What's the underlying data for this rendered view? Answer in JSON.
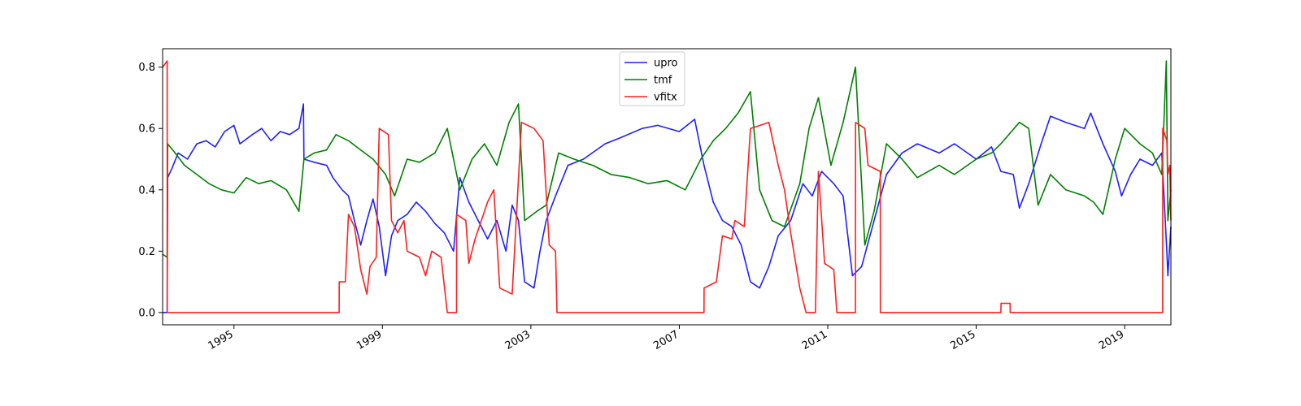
{
  "chart_data": {
    "type": "line",
    "title": "",
    "xlabel": "",
    "ylabel": "",
    "xlim": [
      "1993-01-29",
      "2020-03-31"
    ],
    "ylim": [
      -0.04,
      0.86
    ],
    "x_ticks": [
      "1995",
      "1999",
      "2003",
      "2007",
      "2011",
      "2015",
      "2019"
    ],
    "y_ticks": [
      "0.0",
      "0.2",
      "0.4",
      "0.6",
      "0.8"
    ],
    "grid": false,
    "legend_position": "top-center",
    "series": [
      {
        "name": "upro",
        "color": "#1f1fff",
        "points": [
          [
            "1993-01-29",
            0.0
          ],
          [
            "1993-03-15",
            0.0
          ],
          [
            "1993-03-20",
            0.44
          ],
          [
            "1993-05-01",
            0.47
          ],
          [
            "1993-07-01",
            0.52
          ],
          [
            "1993-10-01",
            0.5
          ],
          [
            "1994-01-01",
            0.55
          ],
          [
            "1994-04-01",
            0.56
          ],
          [
            "1994-07-01",
            0.54
          ],
          [
            "1994-10-01",
            0.59
          ],
          [
            "1995-01-01",
            0.61
          ],
          [
            "1995-03-01",
            0.55
          ],
          [
            "1995-07-01",
            0.58
          ],
          [
            "1995-10-01",
            0.6
          ],
          [
            "1996-01-01",
            0.56
          ],
          [
            "1996-04-01",
            0.59
          ],
          [
            "1996-07-01",
            0.58
          ],
          [
            "1996-10-01",
            0.6
          ],
          [
            "1996-11-15",
            0.68
          ],
          [
            "1996-11-20",
            0.5
          ],
          [
            "1997-03-01",
            0.49
          ],
          [
            "1997-07-01",
            0.48
          ],
          [
            "1997-09-01",
            0.44
          ],
          [
            "1997-12-01",
            0.4
          ],
          [
            "1998-02-01",
            0.38
          ],
          [
            "1998-04-01",
            0.3
          ],
          [
            "1998-06-01",
            0.22
          ],
          [
            "1998-08-01",
            0.3
          ],
          [
            "1998-10-01",
            0.37
          ],
          [
            "1998-12-01",
            0.28
          ],
          [
            "1999-02-01",
            0.12
          ],
          [
            "1999-04-01",
            0.25
          ],
          [
            "1999-06-01",
            0.3
          ],
          [
            "1999-09-01",
            0.32
          ],
          [
            "1999-12-01",
            0.36
          ],
          [
            "2000-03-01",
            0.33
          ],
          [
            "2000-06-01",
            0.29
          ],
          [
            "2000-09-01",
            0.26
          ],
          [
            "2000-12-01",
            0.2
          ],
          [
            "2001-02-01",
            0.44
          ],
          [
            "2001-05-01",
            0.36
          ],
          [
            "2001-08-01",
            0.3
          ],
          [
            "2001-11-01",
            0.24
          ],
          [
            "2002-02-01",
            0.3
          ],
          [
            "2002-05-01",
            0.2
          ],
          [
            "2002-07-01",
            0.35
          ],
          [
            "2002-09-01",
            0.3
          ],
          [
            "2002-11-01",
            0.1
          ],
          [
            "2003-02-01",
            0.08
          ],
          [
            "2003-04-01",
            0.2
          ],
          [
            "2003-06-01",
            0.3
          ],
          [
            "2003-09-01",
            0.38
          ],
          [
            "2004-01-01",
            0.48
          ],
          [
            "2004-06-01",
            0.5
          ],
          [
            "2005-01-01",
            0.55
          ],
          [
            "2005-06-01",
            0.57
          ],
          [
            "2006-01-01",
            0.6
          ],
          [
            "2006-06-01",
            0.61
          ],
          [
            "2007-01-01",
            0.59
          ],
          [
            "2007-06-01",
            0.63
          ],
          [
            "2007-09-01",
            0.48
          ],
          [
            "2007-12-01",
            0.36
          ],
          [
            "2008-03-01",
            0.3
          ],
          [
            "2008-06-01",
            0.28
          ],
          [
            "2008-09-01",
            0.22
          ],
          [
            "2008-12-01",
            0.1
          ],
          [
            "2009-03-01",
            0.08
          ],
          [
            "2009-06-01",
            0.15
          ],
          [
            "2009-09-01",
            0.25
          ],
          [
            "2010-01-01",
            0.3
          ],
          [
            "2010-05-01",
            0.42
          ],
          [
            "2010-08-01",
            0.38
          ],
          [
            "2010-11-01",
            0.46
          ],
          [
            "2011-03-01",
            0.42
          ],
          [
            "2011-06-01",
            0.38
          ],
          [
            "2011-09-01",
            0.12
          ],
          [
            "2011-12-01",
            0.15
          ],
          [
            "2012-04-01",
            0.3
          ],
          [
            "2012-08-01",
            0.45
          ],
          [
            "2013-01-01",
            0.52
          ],
          [
            "2013-06-01",
            0.55
          ],
          [
            "2014-01-01",
            0.52
          ],
          [
            "2014-06-01",
            0.55
          ],
          [
            "2015-01-01",
            0.5
          ],
          [
            "2015-06-01",
            0.54
          ],
          [
            "2015-09-01",
            0.46
          ],
          [
            "2016-01-01",
            0.45
          ],
          [
            "2016-03-01",
            0.34
          ],
          [
            "2016-06-01",
            0.42
          ],
          [
            "2016-10-01",
            0.55
          ],
          [
            "2017-01-01",
            0.64
          ],
          [
            "2017-06-01",
            0.62
          ],
          [
            "2017-12-01",
            0.6
          ],
          [
            "2018-02-01",
            0.65
          ],
          [
            "2018-06-01",
            0.55
          ],
          [
            "2018-10-01",
            0.46
          ],
          [
            "2018-12-01",
            0.38
          ],
          [
            "2019-03-01",
            0.45
          ],
          [
            "2019-06-01",
            0.5
          ],
          [
            "2019-10-01",
            0.48
          ],
          [
            "2020-01-01",
            0.52
          ],
          [
            "2020-02-20",
            0.2
          ],
          [
            "2020-03-01",
            0.12
          ],
          [
            "2020-03-31",
            0.28
          ]
        ]
      },
      {
        "name": "tmf",
        "color": "#008000",
        "points": [
          [
            "1993-01-29",
            0.19
          ],
          [
            "1993-03-15",
            0.18
          ],
          [
            "1993-03-20",
            0.55
          ],
          [
            "1993-06-01",
            0.52
          ],
          [
            "1993-09-01",
            0.48
          ],
          [
            "1994-01-01",
            0.45
          ],
          [
            "1994-05-01",
            0.42
          ],
          [
            "1994-09-01",
            0.4
          ],
          [
            "1995-01-01",
            0.39
          ],
          [
            "1995-05-01",
            0.44
          ],
          [
            "1995-09-01",
            0.42
          ],
          [
            "1996-01-01",
            0.43
          ],
          [
            "1996-06-01",
            0.4
          ],
          [
            "1996-10-01",
            0.33
          ],
          [
            "1996-11-20",
            0.5
          ],
          [
            "1997-03-01",
            0.52
          ],
          [
            "1997-07-01",
            0.53
          ],
          [
            "1997-10-01",
            0.58
          ],
          [
            "1998-02-01",
            0.56
          ],
          [
            "1998-06-01",
            0.53
          ],
          [
            "1998-10-01",
            0.5
          ],
          [
            "1999-02-01",
            0.45
          ],
          [
            "1999-05-01",
            0.38
          ],
          [
            "1999-09-01",
            0.5
          ],
          [
            "2000-01-01",
            0.49
          ],
          [
            "2000-06-01",
            0.52
          ],
          [
            "2000-10-01",
            0.6
          ],
          [
            "2001-02-01",
            0.4
          ],
          [
            "2001-06-01",
            0.5
          ],
          [
            "2001-10-01",
            0.55
          ],
          [
            "2002-02-01",
            0.48
          ],
          [
            "2002-06-01",
            0.62
          ],
          [
            "2002-09-01",
            0.68
          ],
          [
            "2002-11-01",
            0.3
          ],
          [
            "2003-03-01",
            0.33
          ],
          [
            "2003-06-01",
            0.35
          ],
          [
            "2003-10-01",
            0.52
          ],
          [
            "2004-03-01",
            0.5
          ],
          [
            "2004-09-01",
            0.48
          ],
          [
            "2005-03-01",
            0.45
          ],
          [
            "2005-09-01",
            0.44
          ],
          [
            "2006-03-01",
            0.42
          ],
          [
            "2006-09-01",
            0.43
          ],
          [
            "2007-03-01",
            0.4
          ],
          [
            "2007-08-01",
            0.5
          ],
          [
            "2007-12-01",
            0.56
          ],
          [
            "2008-04-01",
            0.6
          ],
          [
            "2008-08-01",
            0.65
          ],
          [
            "2008-12-01",
            0.72
          ],
          [
            "2009-03-01",
            0.4
          ],
          [
            "2009-07-01",
            0.3
          ],
          [
            "2009-11-01",
            0.28
          ],
          [
            "2010-04-01",
            0.42
          ],
          [
            "2010-07-01",
            0.6
          ],
          [
            "2010-10-01",
            0.7
          ],
          [
            "2011-02-01",
            0.48
          ],
          [
            "2011-06-01",
            0.62
          ],
          [
            "2011-10-01",
            0.8
          ],
          [
            "2012-01-01",
            0.22
          ],
          [
            "2012-04-01",
            0.33
          ],
          [
            "2012-08-01",
            0.55
          ],
          [
            "2013-01-01",
            0.5
          ],
          [
            "2013-06-01",
            0.44
          ],
          [
            "2014-01-01",
            0.48
          ],
          [
            "2014-06-01",
            0.45
          ],
          [
            "2015-01-01",
            0.5
          ],
          [
            "2015-06-01",
            0.52
          ],
          [
            "2015-09-01",
            0.55
          ],
          [
            "2016-03-01",
            0.62
          ],
          [
            "2016-06-01",
            0.6
          ],
          [
            "2016-09-01",
            0.35
          ],
          [
            "2017-01-01",
            0.45
          ],
          [
            "2017-06-01",
            0.4
          ],
          [
            "2017-12-01",
            0.38
          ],
          [
            "2018-03-01",
            0.36
          ],
          [
            "2018-06-01",
            0.32
          ],
          [
            "2018-10-01",
            0.5
          ],
          [
            "2019-01-01",
            0.6
          ],
          [
            "2019-06-01",
            0.55
          ],
          [
            "2019-10-01",
            0.52
          ],
          [
            "2020-01-01",
            0.45
          ],
          [
            "2020-02-15",
            0.82
          ],
          [
            "2020-03-01",
            0.3
          ],
          [
            "2020-03-31",
            0.4
          ]
        ]
      },
      {
        "name": "vfitx",
        "color": "#ff1f1f",
        "points": [
          [
            "1993-01-29",
            0.8
          ],
          [
            "1993-03-15",
            0.82
          ],
          [
            "1993-03-16",
            0.0
          ],
          [
            "1997-11-01",
            0.0
          ],
          [
            "1997-11-02",
            0.1
          ],
          [
            "1998-01-01",
            0.1
          ],
          [
            "1998-02-01",
            0.32
          ],
          [
            "1998-04-01",
            0.28
          ],
          [
            "1998-06-01",
            0.14
          ],
          [
            "1998-08-01",
            0.06
          ],
          [
            "1998-09-01",
            0.15
          ],
          [
            "1998-11-01",
            0.18
          ],
          [
            "1998-12-01",
            0.6
          ],
          [
            "1999-03-01",
            0.58
          ],
          [
            "1999-04-01",
            0.3
          ],
          [
            "1999-06-01",
            0.26
          ],
          [
            "1999-08-01",
            0.3
          ],
          [
            "1999-09-01",
            0.2
          ],
          [
            "2000-01-01",
            0.18
          ],
          [
            "2000-03-01",
            0.12
          ],
          [
            "2000-05-01",
            0.2
          ],
          [
            "2000-08-01",
            0.18
          ],
          [
            "2000-10-01",
            0.0
          ],
          [
            "2000-12-31",
            0.0
          ],
          [
            "2001-01-01",
            0.32
          ],
          [
            "2001-04-01",
            0.3
          ],
          [
            "2001-05-01",
            0.16
          ],
          [
            "2001-07-01",
            0.24
          ],
          [
            "2001-09-01",
            0.3
          ],
          [
            "2001-11-01",
            0.36
          ],
          [
            "2002-01-01",
            0.4
          ],
          [
            "2002-03-01",
            0.08
          ],
          [
            "2002-07-01",
            0.06
          ],
          [
            "2002-10-01",
            0.62
          ],
          [
            "2003-02-01",
            0.6
          ],
          [
            "2003-05-01",
            0.56
          ],
          [
            "2003-07-01",
            0.22
          ],
          [
            "2003-09-01",
            0.2
          ],
          [
            "2003-09-15",
            0.0
          ],
          [
            "2007-09-01",
            0.0
          ],
          [
            "2007-09-02",
            0.08
          ],
          [
            "2008-01-01",
            0.1
          ],
          [
            "2008-03-01",
            0.25
          ],
          [
            "2008-06-01",
            0.24
          ],
          [
            "2008-07-01",
            0.3
          ],
          [
            "2008-10-01",
            0.28
          ],
          [
            "2008-12-01",
            0.6
          ],
          [
            "2009-06-01",
            0.62
          ],
          [
            "2009-09-01",
            0.48
          ],
          [
            "2009-11-01",
            0.4
          ],
          [
            "2010-01-01",
            0.26
          ],
          [
            "2010-04-01",
            0.08
          ],
          [
            "2010-06-01",
            0.0
          ],
          [
            "2010-09-01",
            0.0
          ],
          [
            "2010-10-01",
            0.46
          ],
          [
            "2010-12-01",
            0.16
          ],
          [
            "2011-03-01",
            0.14
          ],
          [
            "2011-04-01",
            0.0
          ],
          [
            "2011-10-01",
            0.0
          ],
          [
            "2011-10-02",
            0.62
          ],
          [
            "2012-01-01",
            0.6
          ],
          [
            "2012-02-01",
            0.48
          ],
          [
            "2012-06-01",
            0.46
          ],
          [
            "2012-06-02",
            0.0
          ],
          [
            "2015-09-01",
            0.0
          ],
          [
            "2015-09-02",
            0.03
          ],
          [
            "2015-12-01",
            0.03
          ],
          [
            "2015-12-02",
            0.0
          ],
          [
            "2020-01-10",
            0.0
          ],
          [
            "2020-01-11",
            0.6
          ],
          [
            "2020-02-20",
            0.56
          ],
          [
            "2020-03-01",
            0.45
          ],
          [
            "2020-03-20",
            0.48
          ],
          [
            "2020-03-31",
            0.3
          ]
        ]
      }
    ]
  }
}
